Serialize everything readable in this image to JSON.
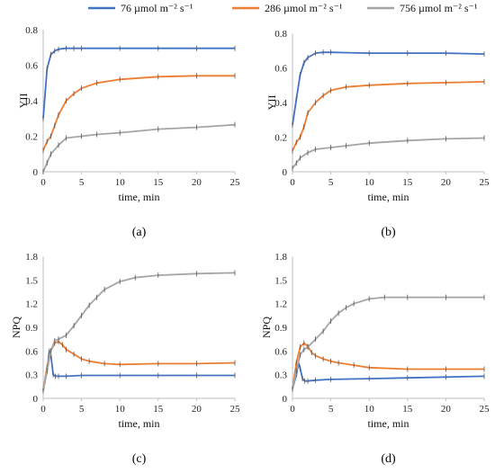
{
  "legend": [
    {
      "label": "76 µmol m⁻² s⁻¹",
      "color": "#4472C4"
    },
    {
      "label": "286 µmol m⁻² s⁻¹",
      "color": "#ED7D31"
    },
    {
      "label": "756 µmol m⁻² s⁻¹",
      "color": "#A5A5A5"
    }
  ],
  "chart_data": [
    {
      "panel": "(a)",
      "type": "line",
      "xlabel": "time, min",
      "ylabel": "YII",
      "xlim": [
        0,
        25
      ],
      "ylim": [
        0,
        0.8
      ],
      "xticks": [
        "0",
        "5",
        "10",
        "15",
        "20",
        "25"
      ],
      "yticks": [
        "0",
        "0.2",
        "0.4",
        "0.6",
        "0.8"
      ],
      "series": [
        {
          "name": "76 µmol m⁻² s⁻¹",
          "color": "#4472C4",
          "x": [
            0,
            0.5,
            1,
            1.5,
            2,
            3,
            4,
            5,
            10,
            15,
            20,
            25
          ],
          "y": [
            0.3,
            0.58,
            0.66,
            0.68,
            0.69,
            0.695,
            0.695,
            0.695,
            0.695,
            0.695,
            0.695,
            0.695
          ]
        },
        {
          "name": "286 µmol m⁻² s⁻¹",
          "color": "#ED7D31",
          "x": [
            0,
            0.5,
            1,
            1.5,
            2,
            3,
            4,
            5,
            7,
            10,
            15,
            20,
            25
          ],
          "y": [
            0.12,
            0.17,
            0.2,
            0.26,
            0.32,
            0.4,
            0.44,
            0.47,
            0.5,
            0.52,
            0.535,
            0.54,
            0.54
          ]
        },
        {
          "name": "756 µmol m⁻² s⁻¹",
          "color": "#A5A5A5",
          "x": [
            0,
            0.5,
            1,
            2,
            3,
            5,
            7,
            10,
            15,
            20,
            25
          ],
          "y": [
            0.0,
            0.05,
            0.1,
            0.15,
            0.19,
            0.2,
            0.21,
            0.22,
            0.24,
            0.25,
            0.265
          ]
        }
      ]
    },
    {
      "panel": "(b)",
      "type": "line",
      "xlabel": "time, min",
      "ylabel": "YII",
      "xlim": [
        0,
        25
      ],
      "ylim": [
        0,
        0.8
      ],
      "xticks": [
        "0",
        "5",
        "10",
        "15",
        "20",
        "25"
      ],
      "yticks": [
        "0",
        "0.2",
        "0.4",
        "0.6",
        "0.8"
      ],
      "series": [
        {
          "name": "76 µmol m⁻² s⁻¹",
          "color": "#4472C4",
          "x": [
            0,
            0.5,
            1,
            1.5,
            2,
            3,
            4,
            5,
            10,
            15,
            20,
            25
          ],
          "y": [
            0.27,
            0.42,
            0.56,
            0.63,
            0.66,
            0.685,
            0.69,
            0.69,
            0.685,
            0.685,
            0.685,
            0.68
          ]
        },
        {
          "name": "286 µmol m⁻² s⁻¹",
          "color": "#ED7D31",
          "x": [
            0,
            0.5,
            1,
            1.5,
            2,
            3,
            4,
            5,
            7,
            10,
            15,
            20,
            25
          ],
          "y": [
            0.12,
            0.17,
            0.2,
            0.26,
            0.34,
            0.4,
            0.44,
            0.47,
            0.49,
            0.5,
            0.51,
            0.515,
            0.52
          ]
        },
        {
          "name": "756 µmol m⁻² s⁻¹",
          "color": "#A5A5A5",
          "x": [
            0,
            0.5,
            1,
            2,
            3,
            5,
            7,
            10,
            15,
            20,
            25
          ],
          "y": [
            0.02,
            0.05,
            0.08,
            0.11,
            0.13,
            0.14,
            0.15,
            0.165,
            0.18,
            0.19,
            0.195
          ]
        }
      ]
    },
    {
      "panel": "(c)",
      "type": "line",
      "xlabel": "time, min",
      "ylabel": "NPQ",
      "xlim": [
        0,
        25
      ],
      "ylim": [
        0,
        1.8
      ],
      "xticks": [
        "0",
        "5",
        "10",
        "15",
        "20",
        "25"
      ],
      "yticks": [
        "0",
        "0.3",
        "0.6",
        "0.9",
        "1.2",
        "1.5",
        "1.8"
      ],
      "series": [
        {
          "name": "76 µmol m⁻² s⁻¹",
          "color": "#4472C4",
          "x": [
            0,
            0.5,
            0.8,
            1,
            1.3,
            1.6,
            2,
            3,
            5,
            10,
            15,
            20,
            25
          ],
          "y": [
            0.1,
            0.35,
            0.6,
            0.55,
            0.3,
            0.28,
            0.28,
            0.28,
            0.29,
            0.29,
            0.29,
            0.29,
            0.29
          ]
        },
        {
          "name": "286 µmol m⁻² s⁻¹",
          "color": "#ED7D31",
          "x": [
            0,
            0.5,
            1,
            1.5,
            2,
            2.5,
            3,
            4,
            5,
            6,
            8,
            10,
            15,
            20,
            25
          ],
          "y": [
            0.1,
            0.4,
            0.6,
            0.7,
            0.72,
            0.68,
            0.62,
            0.56,
            0.5,
            0.47,
            0.44,
            0.43,
            0.44,
            0.44,
            0.45
          ]
        },
        {
          "name": "756 µmol m⁻² s⁻¹",
          "color": "#A5A5A5",
          "x": [
            0,
            0.5,
            1,
            1.5,
            2,
            3,
            4,
            5,
            6,
            7,
            8,
            10,
            12,
            15,
            20,
            25
          ],
          "y": [
            0.1,
            0.35,
            0.6,
            0.73,
            0.75,
            0.8,
            0.92,
            1.05,
            1.18,
            1.28,
            1.38,
            1.48,
            1.53,
            1.56,
            1.58,
            1.59
          ]
        }
      ]
    },
    {
      "panel": "(d)",
      "type": "line",
      "xlabel": "time, min",
      "ylabel": "NPQ",
      "xlim": [
        0,
        25
      ],
      "ylim": [
        0,
        1.8
      ],
      "xticks": [
        "0",
        "5",
        "10",
        "15",
        "20",
        "25"
      ],
      "yticks": [
        "0",
        "0.3",
        "0.6",
        "0.9",
        "1.2",
        "1.5",
        "1.8"
      ],
      "series": [
        {
          "name": "76 µmol m⁻² s⁻¹",
          "color": "#4472C4",
          "x": [
            0,
            0.5,
            0.8,
            1,
            1.3,
            1.6,
            2,
            3,
            5,
            10,
            15,
            20,
            25
          ],
          "y": [
            0.12,
            0.3,
            0.45,
            0.38,
            0.25,
            0.22,
            0.22,
            0.23,
            0.24,
            0.25,
            0.26,
            0.27,
            0.28
          ]
        },
        {
          "name": "286 µmol m⁻² s⁻¹",
          "color": "#ED7D31",
          "x": [
            0,
            0.5,
            1,
            1.5,
            2,
            2.5,
            3,
            4,
            5,
            6,
            8,
            10,
            15,
            20,
            25
          ],
          "y": [
            0.12,
            0.45,
            0.65,
            0.7,
            0.66,
            0.58,
            0.54,
            0.5,
            0.47,
            0.45,
            0.42,
            0.39,
            0.37,
            0.37,
            0.37
          ]
        },
        {
          "name": "756 µmol m⁻² s⁻¹",
          "color": "#A5A5A5",
          "x": [
            0,
            0.5,
            1,
            1.5,
            2,
            3,
            4,
            5,
            6,
            7,
            8,
            10,
            12,
            15,
            20,
            25
          ],
          "y": [
            0.12,
            0.35,
            0.55,
            0.62,
            0.65,
            0.75,
            0.85,
            0.98,
            1.08,
            1.15,
            1.2,
            1.26,
            1.28,
            1.28,
            1.28,
            1.28
          ]
        }
      ]
    }
  ]
}
